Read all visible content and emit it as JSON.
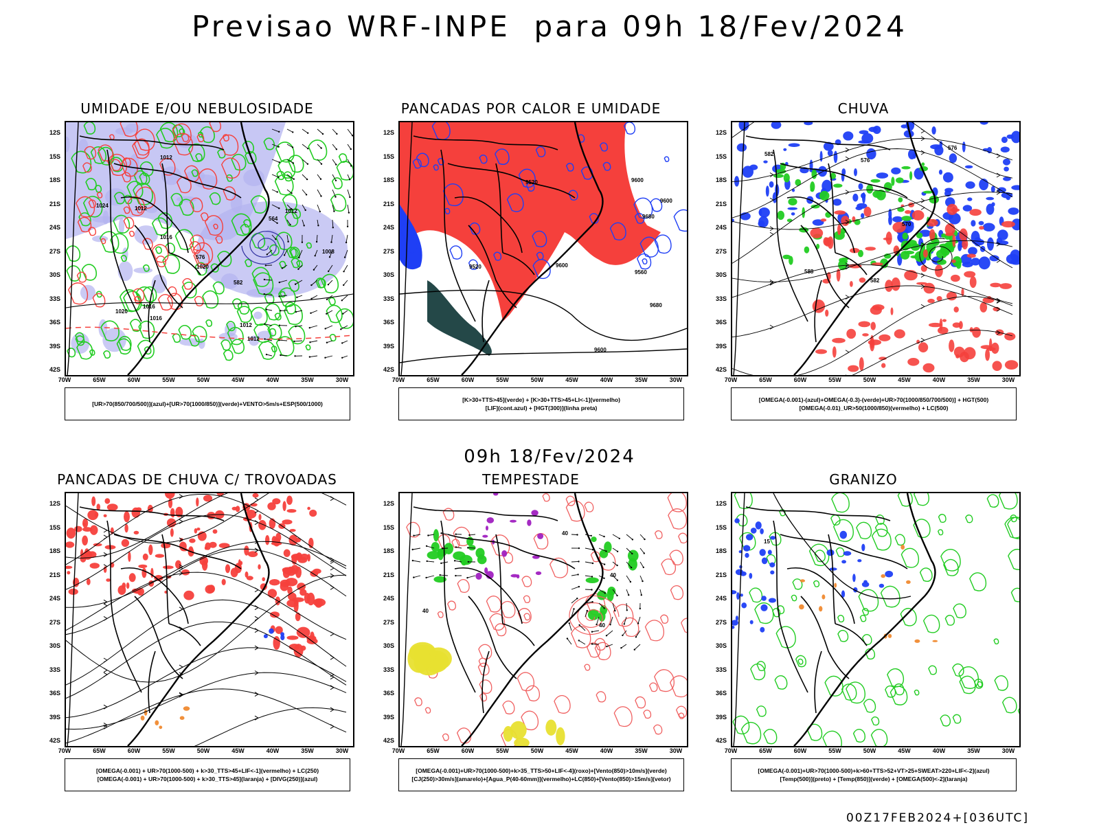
{
  "title": "Previsao WRF-INPE  para 09h 18/Fev/2024",
  "subtitle": "09h 18/Fev/2024",
  "footer": "00Z17FEB2024+[036UTC]",
  "lat_labels": [
    "12S",
    "15S",
    "18S",
    "21S",
    "24S",
    "27S",
    "30S",
    "33S",
    "36S",
    "39S",
    "42S"
  ],
  "lon_labels": [
    "70W",
    "65W",
    "60W",
    "55W",
    "50W",
    "45W",
    "40W",
    "35W",
    "30W"
  ],
  "colors": {
    "blue": "#1f3ff5",
    "lavender": "#b4b4f0",
    "green": "#22cc22",
    "red": "#f5403c",
    "darkteal": "#244848",
    "yellow": "#e8e030",
    "purple": "#a020c0",
    "orange": "#f08a30",
    "black": "#000000",
    "salmon": "#f06060"
  },
  "panels": [
    {
      "title": "UMIDADE E/OU NEBULOSIDADE",
      "legend": [
        "[UR>70(850/700/500)](azul)+[UR>70(1000/850)](verde)+VENTO>5m/s+ESP(500/1000)"
      ],
      "contour_labels": [
        "1012",
        "1012",
        "1016",
        "1012",
        "1012",
        "1012",
        "1008",
        "1016",
        "1020",
        "1016",
        "1020",
        "1024",
        "576",
        "582",
        "564"
      ]
    },
    {
      "title": "PANCADAS POR CALOR E UMIDADE",
      "legend": [
        "[K>30+TTS>45](verde) + [K>30+TTS>45+LI<-1](vermelho)",
        "[LIF](cont.azul) + [HGT(300)](linha preta)"
      ],
      "contour_labels": [
        "9680",
        "9560",
        "9600",
        "9680",
        "9520",
        "9600",
        "9600",
        "9520",
        "9600"
      ]
    },
    {
      "title": "CHUVA",
      "legend": [
        "[OMEGA(-0.001)-(azul)+OMEGA(-0.3)-(verde)+UR>70(1000/850/700/500)] + HGT(500)",
        "[OMEGA(-0.01)_UR>50(1000/850)(vermelho) + LC(500)"
      ],
      "contour_labels": [
        "588",
        "576",
        "582",
        "570",
        "582",
        "576"
      ]
    },
    {
      "title": "PANCADAS DE CHUVA C/ TROVOADAS",
      "legend": [
        "[OMEGA(-0.001) + UR>70(1000-500) + k>30_TTS>45+LIF<-1](vermelho) + LC(250)",
        "[OMEGA(-0.001) + UR>70(1000-500) + k>30_TTS>45](laranja) + [DIVG(250)](azul)"
      ],
      "contour_labels": []
    },
    {
      "title": "TEMPESTADE",
      "legend": [
        "[OMEGA(-0.001)+UR>70(1000-500)+k>35_TTS>50+LIF<-4](roxo)+[Vento(850)>10m/s](verde)",
        "[CJ(250)>30m/s](amarelo)+[Agua_P(40-60mm)](vermelho)+LC(850)+[Vento(850)>15m/s](vetor)"
      ],
      "contour_labels": [
        "40",
        "40",
        "40",
        "40"
      ]
    },
    {
      "title": "GRANIZO",
      "legend": [
        "[OMEGA(-0.001)+UR>70(1000-500)+k>60+TTS>52+VT>25+SWEAT>220+LIF<-2](azul)",
        "[Temp(500)](preto) + [Temp(850)](verde) + [OMEGA(500)<-2](laranja)"
      ],
      "contour_labels": [
        "15"
      ]
    }
  ]
}
